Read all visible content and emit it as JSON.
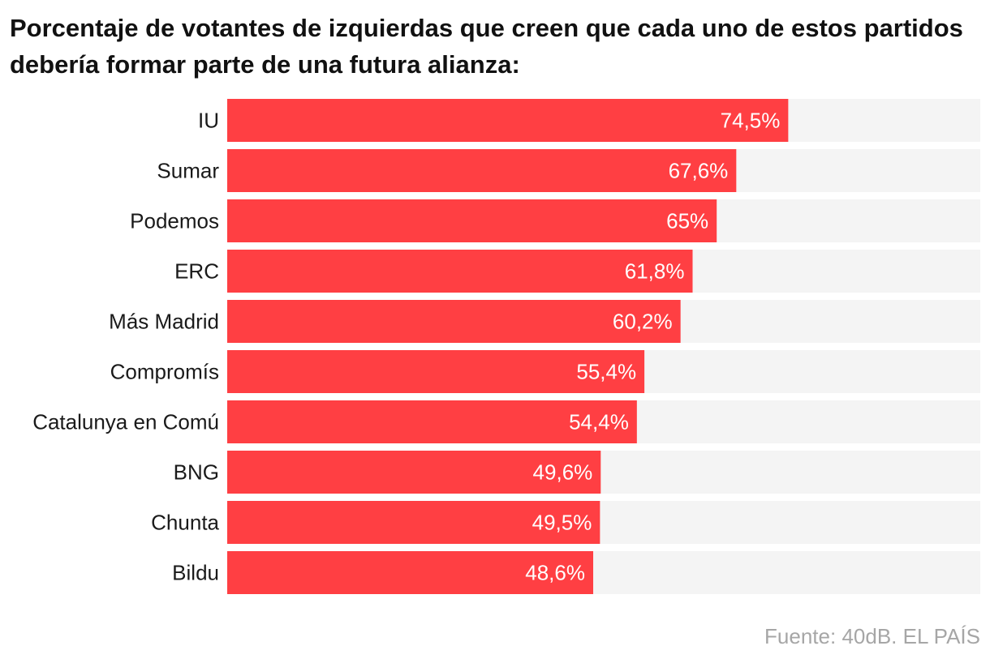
{
  "chart_data": {
    "type": "bar",
    "orientation": "horizontal",
    "title": "Porcentaje de votantes de izquierdas que creen que cada uno de estos partidos debería formar parte de una futura alianza:",
    "categories": [
      "IU",
      "Sumar",
      "Podemos",
      "ERC",
      "Más Madrid",
      "Compromís",
      "Catalunya en Comú",
      "BNG",
      "Chunta",
      "Bildu"
    ],
    "values": [
      74.5,
      67.6,
      65,
      61.8,
      60.2,
      55.4,
      54.4,
      49.6,
      49.5,
      48.6
    ],
    "value_labels": [
      "74,5%",
      "67,6%",
      "65%",
      "61,8%",
      "60,2%",
      "55,4%",
      "54,4%",
      "49,6%",
      "49,5%",
      "48,6%"
    ],
    "xlim": [
      0,
      100
    ],
    "grid": false,
    "legend": "none",
    "colors": {
      "bar": "#ff3f43",
      "track": "#f4f4f4"
    }
  },
  "source": "Fuente: 40dB. EL PAÍS"
}
